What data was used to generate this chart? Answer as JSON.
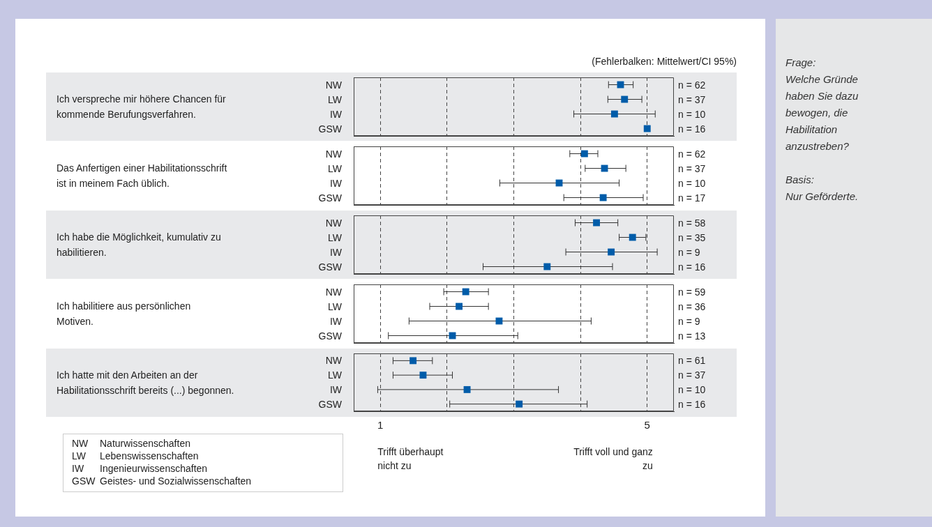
{
  "chart_data": [
    {
      "type": "other",
      "annotations": [
        "(Fehlerbalken: Mittelwert/CI 95%)"
      ]
    },
    {
      "type": "scatter",
      "orientation": "horizontal",
      "ylabel": "Ich verspreche mir höhere Chancen für\nkommende Berufungsverfahren.",
      "categories": [
        "NW",
        "LW",
        "IW",
        "GSW"
      ],
      "values": [
        4.6,
        4.66,
        4.51,
        5.0
      ],
      "errors": [
        [
          4.42,
          4.79
        ],
        [
          4.41,
          4.92
        ],
        [
          3.9,
          5.12
        ],
        null
      ],
      "color": "#005ca9",
      "marker": "square",
      "xlim": [
        0.6,
        5.4
      ],
      "xticks": [
        1,
        2,
        3,
        4,
        5
      ],
      "grid": "x",
      "tick_labels": "y",
      "annotations": [
        "n = 62",
        "n = 37",
        "n = 10",
        "n = 16"
      ]
    },
    {
      "type": "scatter",
      "orientation": "horizontal",
      "ylabel": "Das Anfertigen einer Habilitationsschrift\nist in meinem Fach üblich.",
      "categories": [
        "NW",
        "LW",
        "IW",
        "GSW"
      ],
      "values": [
        4.06,
        4.36,
        3.68,
        4.34
      ],
      "errors": [
        [
          3.84,
          4.26
        ],
        [
          4.07,
          4.68
        ],
        [
          2.79,
          4.58
        ],
        [
          3.75,
          4.94
        ]
      ],
      "color": "#005ca9",
      "marker": "square",
      "xlim": [
        0.6,
        5.4
      ],
      "xticks": [
        1,
        2,
        3,
        4,
        5
      ],
      "grid": "x",
      "tick_labels": "y",
      "annotations": [
        "n = 62",
        "n = 37",
        "n = 10",
        "n = 17"
      ]
    },
    {
      "type": "scatter",
      "orientation": "horizontal",
      "ylabel": "Ich habe die Möglichkeit, kumulativ zu\nhabilitieren.",
      "categories": [
        "NW",
        "LW",
        "IW",
        "GSW"
      ],
      "values": [
        4.24,
        4.78,
        4.46,
        3.5
      ],
      "errors": [
        [
          3.92,
          4.56
        ],
        [
          4.58,
          4.98
        ],
        [
          3.78,
          5.15
        ],
        [
          2.54,
          4.48
        ]
      ],
      "color": "#005ca9",
      "marker": "square",
      "xlim": [
        0.6,
        5.4
      ],
      "xticks": [
        1,
        2,
        3,
        4,
        5
      ],
      "grid": "x",
      "tick_labels": "y",
      "annotations": [
        "n = 58",
        "n = 35",
        "n = 9",
        "n = 16"
      ]
    },
    {
      "type": "scatter",
      "orientation": "horizontal",
      "ylabel": "Ich habilitiere aus persönlichen\nMotiven.",
      "categories": [
        "NW",
        "LW",
        "IW",
        "GSW"
      ],
      "values": [
        2.28,
        2.18,
        2.78,
        2.08
      ],
      "errors": [
        [
          1.95,
          2.62
        ],
        [
          1.74,
          2.62
        ],
        [
          1.43,
          4.16
        ],
        [
          1.12,
          3.06
        ]
      ],
      "color": "#005ca9",
      "marker": "square",
      "xlim": [
        0.6,
        5.4
      ],
      "xticks": [
        1,
        2,
        3,
        4,
        5
      ],
      "grid": "x",
      "tick_labels": "y",
      "annotations": [
        "n = 59",
        "n = 36",
        "n = 9",
        "n = 13"
      ]
    },
    {
      "type": "scatter",
      "orientation": "horizontal",
      "ylabel": "Ich hatte mit den Arbeiten an der\nHabilitationsschrift bereits (...) begonnen.",
      "categories": [
        "NW",
        "LW",
        "IW",
        "GSW"
      ],
      "values": [
        1.49,
        1.64,
        2.3,
        3.08
      ],
      "errors": [
        [
          1.19,
          1.78
        ],
        [
          1.19,
          2.08
        ],
        [
          0.96,
          3.67
        ],
        [
          2.04,
          4.1
        ]
      ],
      "color": "#005ca9",
      "marker": "square",
      "xlim": [
        0.6,
        5.4
      ],
      "xticks": [
        {
          "value": 1,
          "label": "1"
        },
        {
          "value": 2,
          "label": null
        },
        {
          "value": 3,
          "label": null
        },
        {
          "value": 4,
          "label": null
        },
        {
          "value": 5,
          "label": "5"
        }
      ],
      "grid": "x",
      "annotations": [
        "n = 61",
        "n = 37",
        "n = 10",
        "n = 16",
        "Trifft überhaupt nicht zu",
        "Trifft voll und ganz zu"
      ]
    },
    {
      "type": "other",
      "annotations": [
        "NW Naturwissenschaften",
        "LW Lebenswissenschaften",
        "IW Ingenieurwissenschaften",
        "GSW Geistes- und Sozialwissenschaften"
      ]
    },
    {
      "type": "other",
      "annotations": [
        "Frage:",
        "Welche Gründe haben Sie dazu bewogen, die Habilitation anzustreben?",
        "Basis:",
        "Nur Geförderte."
      ]
    }
  ]
}
